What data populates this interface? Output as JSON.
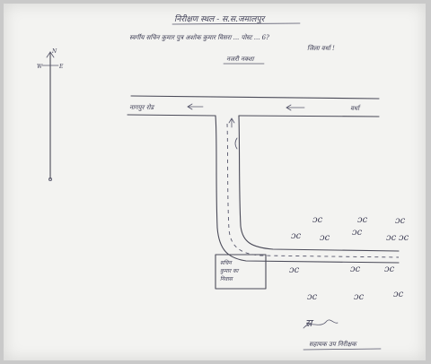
{
  "header": {
    "title": "निरीक्षण स्थल - स.स.जमालपुर",
    "subtitle": "स्वर्गीय सचिन कुमार पुत्र अशोक कुमार विसरा ... पोस्ट ... 6?",
    "subtitle2": "जिला वर्धा !",
    "heading": "नजरी नक्शा"
  },
  "compass": {
    "north": "N",
    "west": "W",
    "east": "E"
  },
  "road": {
    "left_label": "नागपुर रोड",
    "right_label": "वर्धा"
  },
  "building": {
    "label_line1": "सचिन",
    "label_line2": "कुमार का",
    "label_line3": "निवास"
  },
  "trees": [
    "ɔc",
    "ɔc",
    "ɔc",
    "ɔc",
    "ɔc",
    "ɔc",
    "ɔc",
    "ɔc",
    "ɔc",
    "ɔc",
    "ɔc",
    "ɔc",
    "ɔc",
    "ɔc"
  ],
  "signature": {
    "mark": "स",
    "name": "सहायक उप निरीक्षक"
  }
}
